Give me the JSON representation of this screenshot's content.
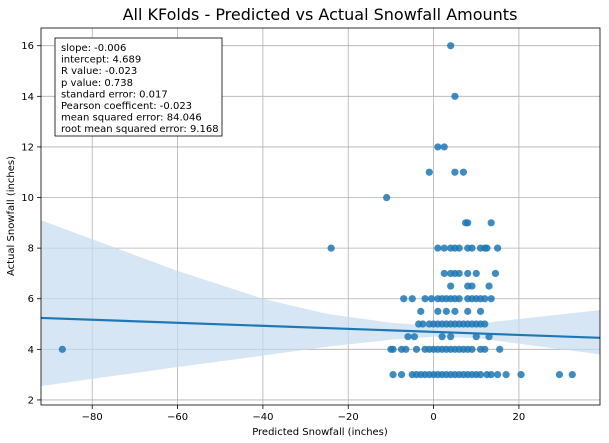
{
  "chart_data": {
    "type": "scatter",
    "title": "All KFolds - Predicted vs Actual Snowfall Amounts",
    "xlabel": "Predicted Snowfall (inches)",
    "ylabel": "Actual Snowfall (inches)",
    "xlim": [
      -92,
      39
    ],
    "ylim": [
      1.8,
      16.7
    ],
    "xticks": [
      -80,
      -60,
      -40,
      -20,
      0,
      20
    ],
    "yticks": [
      2,
      4,
      6,
      8,
      10,
      12,
      14,
      16
    ],
    "grid": true,
    "colors": {
      "points": "#1f77b4",
      "line": "#1f77b4",
      "band": "#c6dbef"
    },
    "stats": [
      "slope: -0.006",
      "intercept: 4.689",
      "R value: -0.023",
      "p value: 0.738",
      "standard error: 0.017",
      "Pearson coefficent: -0.023",
      "mean squared error: 84.046",
      "root mean squared error: 9.168"
    ],
    "regression": {
      "slope": -0.006,
      "intercept": 4.689
    },
    "confidence_band": {
      "x": [
        -92,
        -60,
        -40,
        -25,
        -10,
        0,
        10,
        20,
        39
      ],
      "lower": [
        2.55,
        3.3,
        3.75,
        4.1,
        4.38,
        4.5,
        4.45,
        4.22,
        3.8
      ],
      "upper": [
        9.1,
        7.1,
        6.0,
        5.4,
        5.05,
        4.92,
        5.0,
        5.2,
        5.55
      ]
    },
    "series": [
      {
        "points": [
          [
            -87,
            4
          ],
          [
            -24,
            8
          ],
          [
            -11,
            10
          ],
          [
            4,
            16
          ],
          [
            5,
            14
          ],
          [
            1,
            12
          ],
          [
            2.5,
            12
          ],
          [
            -1,
            11
          ],
          [
            5,
            11
          ],
          [
            7,
            11
          ],
          [
            7.5,
            9
          ],
          [
            8,
            9
          ],
          [
            13.5,
            9
          ],
          [
            1,
            8
          ],
          [
            2.5,
            8
          ],
          [
            4,
            8
          ],
          [
            5,
            8
          ],
          [
            6,
            8
          ],
          [
            8,
            8
          ],
          [
            9,
            8
          ],
          [
            11,
            8
          ],
          [
            12,
            8
          ],
          [
            12.5,
            8
          ],
          [
            15,
            8
          ],
          [
            2.5,
            7
          ],
          [
            4,
            7
          ],
          [
            5,
            7
          ],
          [
            6,
            7
          ],
          [
            8,
            7
          ],
          [
            10,
            7
          ],
          [
            14.5,
            7
          ],
          [
            4,
            6.5
          ],
          [
            8,
            6.5
          ],
          [
            9,
            6.5
          ],
          [
            13,
            6.5
          ],
          [
            -7,
            6
          ],
          [
            -5,
            6
          ],
          [
            -2,
            6
          ],
          [
            -0.5,
            6
          ],
          [
            1,
            6
          ],
          [
            2,
            6
          ],
          [
            3,
            6
          ],
          [
            4,
            6
          ],
          [
            5,
            6
          ],
          [
            6,
            6
          ],
          [
            8,
            6
          ],
          [
            9,
            6
          ],
          [
            10,
            6
          ],
          [
            11,
            6
          ],
          [
            12,
            6
          ],
          [
            13.5,
            6
          ],
          [
            -3,
            5.5
          ],
          [
            1,
            5.5
          ],
          [
            3,
            5.5
          ],
          [
            5,
            5.5
          ],
          [
            8,
            5.5
          ],
          [
            11,
            5.5
          ],
          [
            -3.5,
            5
          ],
          [
            -2.5,
            5
          ],
          [
            -1,
            5
          ],
          [
            0,
            5
          ],
          [
            1,
            5
          ],
          [
            2,
            5
          ],
          [
            3,
            5
          ],
          [
            4,
            5
          ],
          [
            5,
            5
          ],
          [
            6,
            5
          ],
          [
            7,
            5
          ],
          [
            8,
            5
          ],
          [
            9,
            5
          ],
          [
            10,
            5
          ],
          [
            11,
            5
          ],
          [
            12,
            5
          ],
          [
            -6,
            4.5
          ],
          [
            -4.5,
            4.5
          ],
          [
            2,
            4.5
          ],
          [
            4,
            4.5
          ],
          [
            10,
            4.5
          ],
          [
            13,
            4.5
          ],
          [
            -10,
            4
          ],
          [
            -9.5,
            4
          ],
          [
            -7.5,
            4
          ],
          [
            -6.5,
            4
          ],
          [
            -4,
            4
          ],
          [
            -2,
            4
          ],
          [
            -1,
            4
          ],
          [
            0,
            4
          ],
          [
            1,
            4
          ],
          [
            2,
            4
          ],
          [
            3,
            4
          ],
          [
            4,
            4
          ],
          [
            5,
            4
          ],
          [
            6,
            4
          ],
          [
            7,
            4
          ],
          [
            8,
            4
          ],
          [
            9,
            4
          ],
          [
            11,
            4
          ],
          [
            12,
            4
          ],
          [
            15.5,
            4
          ],
          [
            -9.5,
            3
          ],
          [
            -7.5,
            3
          ],
          [
            -5,
            3
          ],
          [
            -4,
            3
          ],
          [
            -3,
            3
          ],
          [
            -2,
            3
          ],
          [
            -1,
            3
          ],
          [
            0,
            3
          ],
          [
            1,
            3
          ],
          [
            2,
            3
          ],
          [
            3,
            3
          ],
          [
            4,
            3
          ],
          [
            5,
            3
          ],
          [
            6,
            3
          ],
          [
            7,
            3
          ],
          [
            8,
            3
          ],
          [
            9,
            3
          ],
          [
            10,
            3
          ],
          [
            11,
            3
          ],
          [
            12.5,
            3
          ],
          [
            13.5,
            3
          ],
          [
            15,
            3
          ],
          [
            17,
            3
          ],
          [
            20.5,
            3
          ],
          [
            29.5,
            3
          ],
          [
            32.5,
            3
          ]
        ]
      }
    ]
  }
}
